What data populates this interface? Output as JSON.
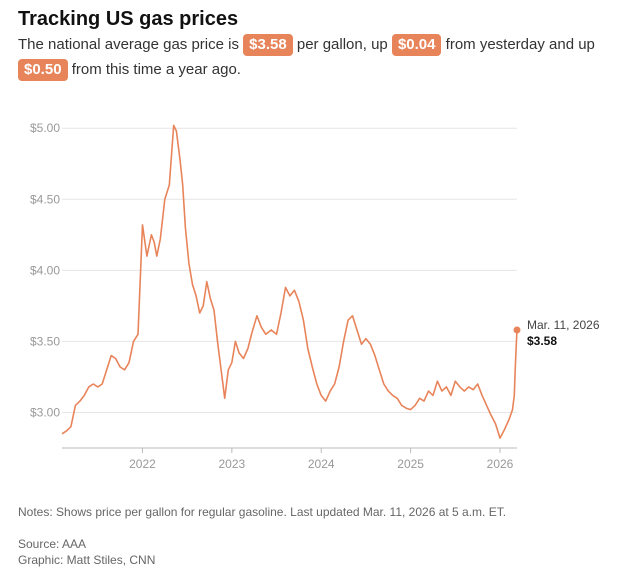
{
  "header": {
    "title": "Tracking US gas prices",
    "subtitle_1": "The national average gas price is",
    "pill_price": "$3.58",
    "subtitle_2": "per gallon, up",
    "pill_day": "$0.04",
    "subtitle_3": "from yesterday and up",
    "pill_year": "$0.50",
    "subtitle_4": "from this time a year ago."
  },
  "colors": {
    "accent": "#e8845a",
    "grid": "#e6e6e6",
    "axis": "#bbbbbb"
  },
  "chart_data": {
    "type": "line",
    "title": "Tracking US gas prices",
    "xlabel": "",
    "ylabel": "",
    "xlim": [
      2021.1,
      2026.19
    ],
    "ylim": [
      2.75,
      5.1
    ],
    "grid": true,
    "y_ticks": [
      {
        "value": 3.0,
        "label": "$3.00"
      },
      {
        "value": 3.5,
        "label": "$3.50"
      },
      {
        "value": 4.0,
        "label": "$4.00"
      },
      {
        "value": 4.5,
        "label": "$4.50"
      },
      {
        "value": 5.0,
        "label": "$5.00"
      }
    ],
    "x_ticks": [
      {
        "value": 2022,
        "label": "2022"
      },
      {
        "value": 2023,
        "label": "2023"
      },
      {
        "value": 2024,
        "label": "2024"
      },
      {
        "value": 2025,
        "label": "2025"
      },
      {
        "value": 2026,
        "label": "2026"
      }
    ],
    "series": [
      {
        "color": "#e8845a",
        "x": [
          2021.1,
          2021.15,
          2021.2,
          2021.25,
          2021.3,
          2021.35,
          2021.4,
          2021.45,
          2021.5,
          2021.55,
          2021.6,
          2021.65,
          2021.7,
          2021.75,
          2021.8,
          2021.85,
          2021.9,
          2021.95,
          2022.0,
          2022.05,
          2022.1,
          2022.13,
          2022.16,
          2022.2,
          2022.25,
          2022.3,
          2022.35,
          2022.38,
          2022.42,
          2022.45,
          2022.48,
          2022.52,
          2022.56,
          2022.6,
          2022.64,
          2022.68,
          2022.72,
          2022.76,
          2022.8,
          2022.84,
          2022.88,
          2022.92,
          2022.96,
          2023.0,
          2023.04,
          2023.08,
          2023.13,
          2023.18,
          2023.22,
          2023.28,
          2023.33,
          2023.38,
          2023.44,
          2023.5,
          2023.55,
          2023.6,
          2023.65,
          2023.7,
          2023.75,
          2023.8,
          2023.85,
          2023.9,
          2023.95,
          2024.0,
          2024.05,
          2024.1,
          2024.15,
          2024.2,
          2024.25,
          2024.3,
          2024.35,
          2024.4,
          2024.45,
          2024.5,
          2024.55,
          2024.6,
          2024.65,
          2024.7,
          2024.75,
          2024.8,
          2024.85,
          2024.9,
          2024.95,
          2025.0,
          2025.05,
          2025.1,
          2025.15,
          2025.2,
          2025.25,
          2025.3,
          2025.35,
          2025.4,
          2025.45,
          2025.5,
          2025.55,
          2025.6,
          2025.65,
          2025.7,
          2025.75,
          2025.8,
          2025.85,
          2025.9,
          2025.95,
          2026.0,
          2026.05,
          2026.1,
          2026.14,
          2026.16,
          2026.17,
          2026.18,
          2026.19
        ],
        "y": [
          2.85,
          2.87,
          2.9,
          3.05,
          3.08,
          3.12,
          3.18,
          3.2,
          3.18,
          3.2,
          3.3,
          3.4,
          3.38,
          3.32,
          3.3,
          3.35,
          3.5,
          3.55,
          4.32,
          4.1,
          4.25,
          4.2,
          4.1,
          4.22,
          4.5,
          4.6,
          5.02,
          4.98,
          4.78,
          4.6,
          4.3,
          4.05,
          3.9,
          3.82,
          3.7,
          3.75,
          3.92,
          3.8,
          3.72,
          3.5,
          3.3,
          3.1,
          3.3,
          3.35,
          3.5,
          3.42,
          3.38,
          3.45,
          3.55,
          3.68,
          3.6,
          3.55,
          3.58,
          3.55,
          3.7,
          3.88,
          3.82,
          3.86,
          3.78,
          3.65,
          3.45,
          3.32,
          3.2,
          3.12,
          3.08,
          3.15,
          3.2,
          3.32,
          3.5,
          3.65,
          3.68,
          3.58,
          3.48,
          3.52,
          3.48,
          3.4,
          3.3,
          3.2,
          3.15,
          3.12,
          3.1,
          3.05,
          3.03,
          3.02,
          3.05,
          3.1,
          3.08,
          3.15,
          3.12,
          3.22,
          3.15,
          3.18,
          3.12,
          3.22,
          3.18,
          3.15,
          3.18,
          3.16,
          3.2,
          3.12,
          3.05,
          2.98,
          2.92,
          2.82,
          2.88,
          2.95,
          3.02,
          3.12,
          3.3,
          3.45,
          3.58
        ]
      }
    ],
    "annotation": {
      "x": 2026.19,
      "y": 3.58,
      "date": "Mar. 11, 2026",
      "value": "$3.58"
    }
  },
  "footer": {
    "notes": "Notes: Shows price per gallon for regular gasoline. Last updated Mar. 11, 2026 at 5 a.m. ET.",
    "source": "Source: AAA",
    "credit": "Graphic: Matt Stiles, CNN"
  }
}
